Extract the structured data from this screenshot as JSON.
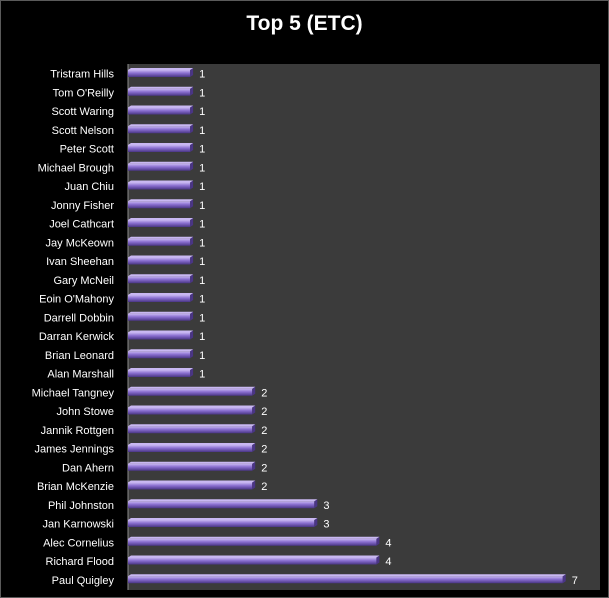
{
  "chart_data": {
    "type": "bar",
    "orientation": "horizontal",
    "title": "Top 5 (ETC)",
    "xlabel": "",
    "ylabel": "",
    "xlim": [
      0,
      7.6
    ],
    "grid": false,
    "legend": "none",
    "categories": [
      "Tristram Hills",
      "Tom O'Reilly",
      "Scott Waring",
      "Scott Nelson",
      "Peter Scott",
      "Michael Brough",
      "Juan Chiu",
      "Jonny Fisher",
      "Joel Cathcart",
      "Jay McKeown",
      "Ivan Sheehan",
      "Gary McNeil",
      "Eoin O'Mahony",
      "Darrell Dobbin",
      "Darran Kerwick",
      "Brian Leonard",
      "Alan Marshall",
      "Michael Tangney",
      "John Stowe",
      "Jannik Rottgen",
      "James Jennings",
      "Dan Ahern",
      "Brian McKenzie",
      "Phil Johnston",
      "Jan Karnowski",
      "Alec Cornelius",
      "Richard Flood",
      "Paul Quigley"
    ],
    "values": [
      1,
      1,
      1,
      1,
      1,
      1,
      1,
      1,
      1,
      1,
      1,
      1,
      1,
      1,
      1,
      1,
      1,
      2,
      2,
      2,
      2,
      2,
      2,
      3,
      3,
      4,
      4,
      7
    ],
    "colors": {
      "background": "#000000",
      "plot_area": "#3b3b3b",
      "bar": "#8a6fd0",
      "bar_highlight": "#c9b8f2",
      "bar_shadow": "#4a3585",
      "text": "#ffffff"
    }
  }
}
